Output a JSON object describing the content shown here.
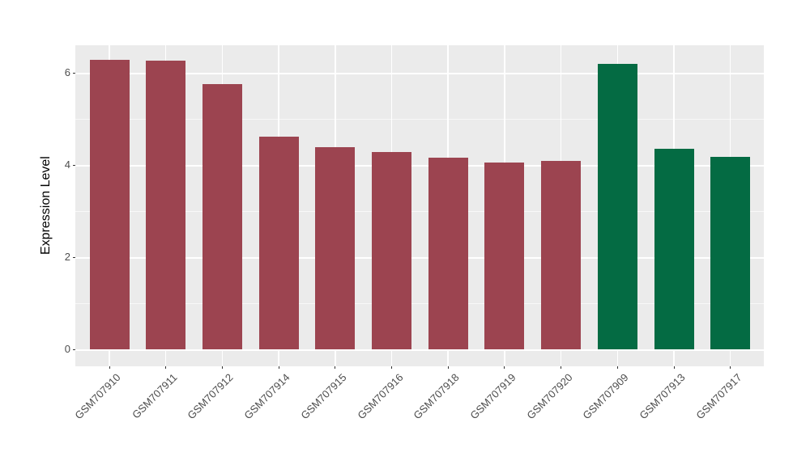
{
  "chart_data": {
    "type": "bar",
    "title": "",
    "xlabel": "",
    "ylabel": "Expression Level",
    "ylim": [
      0,
      6.6
    ],
    "yticks": [
      0,
      2,
      4,
      6
    ],
    "yminor": [
      1,
      3,
      5
    ],
    "grid": "major and minor horizontal white lines plus vertical white lines at each category center on grey panel",
    "legend_position": "none",
    "categories": [
      "GSM707910",
      "GSM707911",
      "GSM707912",
      "GSM707914",
      "GSM707915",
      "GSM707916",
      "GSM707918",
      "GSM707919",
      "GSM707920",
      "GSM707909",
      "GSM707913",
      "GSM707917"
    ],
    "series": [
      {
        "name": "Expression Level",
        "values": [
          6.28,
          6.26,
          5.76,
          4.62,
          4.38,
          4.28,
          4.15,
          4.05,
          4.08,
          6.19,
          4.35,
          4.17
        ]
      }
    ],
    "groups": [
      "a",
      "a",
      "a",
      "a",
      "a",
      "a",
      "a",
      "a",
      "a",
      "b",
      "b",
      "b"
    ],
    "colors": {
      "a": "#9C4450",
      "b": "#046B43",
      "panel_background": "#EBEBEB",
      "gridline": "#FFFFFF",
      "axis_text": "#4D4D4D",
      "axis_title": "#000000",
      "tick_mark": "#333333"
    }
  }
}
